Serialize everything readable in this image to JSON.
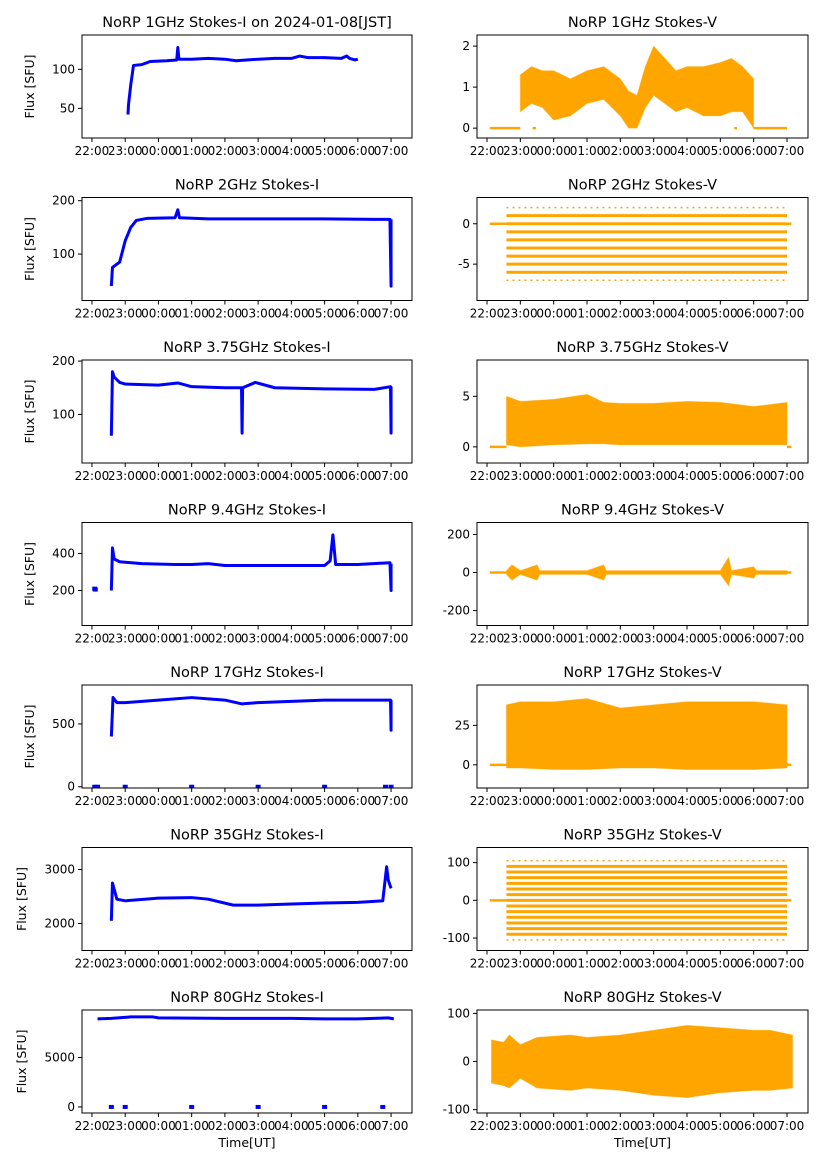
{
  "figure": {
    "xlabel": "Time[UT]"
  },
  "chart_data": [
    {
      "type": "line",
      "title": "NoRP 1GHz Stokes-I on 2024-01-08[JST]",
      "ylabel": "Flux [SFU]",
      "xlabel": "",
      "color": "#0000ff",
      "xticks": [
        "22:00",
        "23:00",
        "00:00",
        "01:00",
        "02:00",
        "03:00",
        "04:00",
        "05:00",
        "06:00",
        "07:00"
      ],
      "yticks": [
        50,
        100
      ],
      "ylim": [
        12,
        144
      ],
      "x": [
        "23:05",
        "23:06",
        "23:10",
        "23:15",
        "23:30",
        "23:45",
        "00:15",
        "00:33",
        "00:35",
        "00:37",
        "01:00",
        "01:30",
        "02:00",
        "02:20",
        "03:00",
        "03:30",
        "04:00",
        "04:15",
        "04:30",
        "05:00",
        "05:30",
        "05:40",
        "05:45",
        "05:55",
        "06:00"
      ],
      "y": [
        42,
        55,
        80,
        105,
        106,
        110,
        111,
        112,
        128,
        113,
        113,
        114,
        113,
        111,
        113,
        114,
        114,
        117,
        115,
        115,
        114,
        117,
        114,
        112,
        113
      ],
      "dots": []
    },
    {
      "type": "scatter",
      "title": "NoRP 1GHz Stokes-V",
      "ylabel": "",
      "xlabel": "",
      "color": "#ffa500",
      "xticks": [
        "22:00",
        "23:00",
        "00:00",
        "01:00",
        "02:00",
        "03:00",
        "04:00",
        "05:00",
        "06:00",
        "07:00"
      ],
      "yticks": [
        0,
        1,
        2
      ],
      "ylim": [
        -0.24,
        2.27
      ],
      "zero_segments": [
        [
          "22:05",
          "23:00"
        ],
        [
          "23:22",
          "23:28"
        ],
        [
          "05:25",
          "05:30"
        ],
        [
          "06:00",
          "07:00"
        ]
      ],
      "band": {
        "x": [
          "23:00",
          "23:20",
          "23:40",
          "00:00",
          "00:30",
          "01:00",
          "01:30",
          "02:00",
          "02:15",
          "02:30",
          "02:45",
          "03:00",
          "03:20",
          "03:40",
          "04:00",
          "04:30",
          "05:00",
          "05:20",
          "05:40",
          "06:00"
        ],
        "low": [
          0.4,
          0.6,
          0.5,
          0.2,
          0.3,
          0.6,
          0.7,
          0.3,
          0.0,
          0.0,
          0.5,
          0.8,
          0.6,
          0.4,
          0.5,
          0.3,
          0.3,
          0.4,
          0.4,
          0.0
        ],
        "high": [
          1.3,
          1.5,
          1.4,
          1.4,
          1.2,
          1.4,
          1.5,
          1.2,
          0.9,
          0.8,
          1.5,
          2.0,
          1.7,
          1.4,
          1.5,
          1.5,
          1.6,
          1.7,
          1.5,
          1.2
        ]
      },
      "levels": []
    },
    {
      "type": "line",
      "title": "NoRP 2GHz Stokes-I",
      "ylabel": "Flux [SFU]",
      "xlabel": "",
      "color": "#0000ff",
      "xticks": [
        "22:00",
        "23:00",
        "00:00",
        "01:00",
        "02:00",
        "03:00",
        "04:00",
        "05:00",
        "06:00",
        "07:00"
      ],
      "yticks": [
        100,
        200
      ],
      "ylim": [
        13,
        206
      ],
      "x": [
        "22:35",
        "22:37",
        "22:50",
        "23:00",
        "23:10",
        "23:20",
        "23:40",
        "00:30",
        "00:35",
        "00:38",
        "01:30",
        "03:00",
        "05:00",
        "06:30",
        "06:58",
        "07:00",
        "07:00"
      ],
      "y": [
        40,
        75,
        85,
        125,
        150,
        163,
        167,
        168,
        183,
        168,
        166,
        166,
        166,
        165,
        165,
        40,
        165
      ],
      "dots": []
    },
    {
      "type": "scatter",
      "title": "NoRP 2GHz Stokes-V",
      "ylabel": "",
      "xlabel": "",
      "color": "#ffa500",
      "xticks": [
        "22:00",
        "23:00",
        "00:00",
        "01:00",
        "02:00",
        "03:00",
        "04:00",
        "05:00",
        "06:00",
        "07:00"
      ],
      "yticks": [
        -5,
        0
      ],
      "ylim": [
        -9.5,
        3.25
      ],
      "zero_segments": [
        [
          "22:05",
          "22:35"
        ],
        [
          "07:00",
          "07:08"
        ]
      ],
      "band": null,
      "band_range": [
        "22:35",
        "07:00"
      ],
      "levels": [
        2,
        1,
        0,
        -1,
        -2,
        -3,
        -4,
        -5,
        -6,
        -7
      ]
    },
    {
      "type": "line",
      "title": "NoRP 3.75GHz Stokes-I",
      "ylabel": "Flux [SFU]",
      "xlabel": "",
      "color": "#0000ff",
      "xticks": [
        "22:00",
        "23:00",
        "00:00",
        "01:00",
        "02:00",
        "03:00",
        "04:00",
        "05:00",
        "06:00",
        "07:00"
      ],
      "yticks": [
        100,
        200
      ],
      "ylim": [
        9,
        202
      ],
      "x": [
        "22:35",
        "22:37",
        "22:40",
        "22:50",
        "23:00",
        "00:00",
        "00:35",
        "01:00",
        "02:00",
        "02:30",
        "02:31",
        "02:32",
        "02:55",
        "03:30",
        "05:00",
        "06:30",
        "06:59",
        "07:00",
        "07:00"
      ],
      "y": [
        60,
        180,
        170,
        160,
        157,
        155,
        159,
        152,
        150,
        150,
        65,
        150,
        160,
        150,
        148,
        147,
        152,
        65,
        152
      ],
      "dots": []
    },
    {
      "type": "scatter",
      "title": "NoRP 3.75GHz Stokes-V",
      "ylabel": "",
      "xlabel": "",
      "color": "#ffa500",
      "xticks": [
        "22:00",
        "23:00",
        "00:00",
        "01:00",
        "02:00",
        "03:00",
        "04:00",
        "05:00",
        "06:00",
        "07:00"
      ],
      "yticks": [
        0,
        5
      ],
      "ylim": [
        -1.6,
        8.6
      ],
      "zero_segments": [
        [
          "22:05",
          "22:35"
        ],
        [
          "07:00",
          "07:08"
        ]
      ],
      "band": {
        "x": [
          "22:35",
          "23:00",
          "00:00",
          "01:00",
          "01:30",
          "02:00",
          "03:00",
          "04:00",
          "05:00",
          "06:00",
          "07:00"
        ],
        "low": [
          0.2,
          0.0,
          0.2,
          0.3,
          0.3,
          0.2,
          0.2,
          0.2,
          0.2,
          0.2,
          0.2
        ],
        "high": [
          5.0,
          4.5,
          4.7,
          5.2,
          4.4,
          4.3,
          4.3,
          4.5,
          4.4,
          4.0,
          4.4
        ]
      },
      "levels": []
    },
    {
      "type": "line",
      "title": "NoRP 9.4GHz Stokes-I",
      "ylabel": "Flux [SFU]",
      "xlabel": "",
      "color": "#0000ff",
      "xticks": [
        "22:00",
        "23:00",
        "00:00",
        "01:00",
        "02:00",
        "03:00",
        "04:00",
        "05:00",
        "06:00",
        "07:00"
      ],
      "yticks": [
        200,
        400
      ],
      "ylim": [
        11,
        567
      ],
      "x": [
        "22:35",
        "22:37",
        "22:40",
        "22:50",
        "23:30",
        "00:30",
        "01:00",
        "01:30",
        "02:00",
        "03:00",
        "04:00",
        "05:00",
        "05:10",
        "05:15",
        "05:20",
        "06:00",
        "06:58",
        "07:00",
        "07:00"
      ],
      "y": [
        200,
        430,
        370,
        355,
        345,
        340,
        340,
        345,
        335,
        335,
        335,
        335,
        360,
        500,
        340,
        340,
        350,
        200,
        345
      ],
      "dots": [
        [
          "22:05",
          210
        ],
        [
          "22:06",
          205
        ]
      ]
    },
    {
      "type": "scatter",
      "title": "NoRP 9.4GHz Stokes-V",
      "ylabel": "",
      "xlabel": "",
      "color": "#ffa500",
      "xticks": [
        "22:00",
        "23:00",
        "00:00",
        "01:00",
        "02:00",
        "03:00",
        "04:00",
        "05:00",
        "06:00",
        "07:00"
      ],
      "yticks": [
        -200,
        0,
        200
      ],
      "ylim": [
        -279,
        263
      ],
      "zero_segments": [
        [
          "22:05",
          "22:35"
        ],
        [
          "07:00",
          "07:08"
        ]
      ],
      "band": {
        "x": [
          "22:35",
          "22:45",
          "23:00",
          "23:30",
          "23:35",
          "00:00",
          "01:00",
          "01:30",
          "01:35",
          "02:00",
          "03:00",
          "04:00",
          "05:00",
          "05:15",
          "05:20",
          "06:00",
          "06:05",
          "07:00"
        ],
        "low": [
          -10,
          -40,
          -10,
          -40,
          -10,
          -10,
          -10,
          -40,
          -10,
          -10,
          -10,
          -10,
          -10,
          -70,
          -10,
          -30,
          -10,
          -10
        ],
        "high": [
          10,
          40,
          10,
          40,
          10,
          10,
          10,
          40,
          10,
          10,
          10,
          10,
          10,
          80,
          10,
          30,
          10,
          10
        ]
      },
      "levels": []
    },
    {
      "type": "line",
      "title": "NoRP 17GHz Stokes-I",
      "ylabel": "Flux [SFU]",
      "xlabel": "",
      "color": "#0000ff",
      "xticks": [
        "22:00",
        "23:00",
        "00:00",
        "01:00",
        "02:00",
        "03:00",
        "04:00",
        "05:00",
        "06:00",
        "07:00"
      ],
      "yticks": [
        0,
        500
      ],
      "ylim": [
        -10,
        810
      ],
      "x": [
        "22:35",
        "22:38",
        "22:45",
        "23:00",
        "00:00",
        "01:00",
        "01:30",
        "02:00",
        "02:30",
        "03:00",
        "04:00",
        "05:00",
        "06:00",
        "06:59",
        "07:00",
        "07:00"
      ],
      "y": [
        400,
        710,
        670,
        670,
        690,
        710,
        700,
        690,
        660,
        670,
        680,
        690,
        690,
        690,
        450,
        690
      ],
      "dots": [
        [
          "22:05",
          0
        ],
        [
          "22:10",
          0
        ],
        [
          "23:00",
          0
        ],
        [
          "01:00",
          0
        ],
        [
          "03:00",
          0
        ],
        [
          "05:00",
          0
        ],
        [
          "06:50",
          0
        ],
        [
          "07:00",
          0
        ]
      ]
    },
    {
      "type": "scatter",
      "title": "NoRP 17GHz Stokes-V",
      "ylabel": "",
      "xlabel": "",
      "color": "#ffa500",
      "xticks": [
        "22:00",
        "23:00",
        "00:00",
        "01:00",
        "02:00",
        "03:00",
        "04:00",
        "05:00",
        "06:00",
        "07:00"
      ],
      "yticks": [
        0,
        25
      ],
      "ylim": [
        -14.7,
        50.6
      ],
      "zero_segments": [
        [
          "22:05",
          "22:35"
        ],
        [
          "07:00",
          "07:08"
        ]
      ],
      "band": {
        "x": [
          "22:35",
          "23:00",
          "00:00",
          "01:00",
          "02:00",
          "03:00",
          "04:00",
          "05:00",
          "06:00",
          "07:00"
        ],
        "low": [
          -2,
          -2,
          -3,
          -3,
          -2,
          -2,
          -3,
          -3,
          -3,
          -2
        ],
        "high": [
          38,
          40,
          40,
          42,
          36,
          38,
          40,
          40,
          40,
          38
        ]
      },
      "levels": []
    },
    {
      "type": "line",
      "title": "NoRP 35GHz Stokes-I",
      "ylabel": "Flux [SFU]",
      "xlabel": "",
      "color": "#0000ff",
      "xticks": [
        "22:00",
        "23:00",
        "00:00",
        "01:00",
        "02:00",
        "03:00",
        "04:00",
        "05:00",
        "06:00",
        "07:00"
      ],
      "yticks": [
        2000,
        3000
      ],
      "ylim": [
        1500,
        3407
      ],
      "x": [
        "22:35",
        "22:37",
        "22:45",
        "23:00",
        "00:00",
        "01:00",
        "01:30",
        "02:15",
        "03:00",
        "04:00",
        "05:00",
        "06:00",
        "06:45",
        "06:52",
        "06:55",
        "07:00"
      ],
      "y": [
        2050,
        2750,
        2450,
        2420,
        2470,
        2480,
        2450,
        2340,
        2340,
        2360,
        2380,
        2390,
        2420,
        3050,
        2800,
        2650
      ],
      "dots": []
    },
    {
      "type": "scatter",
      "title": "NoRP 35GHz Stokes-V",
      "ylabel": "",
      "xlabel": "",
      "color": "#ffa500",
      "xticks": [
        "22:00",
        "23:00",
        "00:00",
        "01:00",
        "02:00",
        "03:00",
        "04:00",
        "05:00",
        "06:00",
        "07:00"
      ],
      "yticks": [
        -100,
        0,
        100
      ],
      "ylim": [
        -133,
        140
      ],
      "zero_segments": [
        [
          "22:05",
          "22:35"
        ],
        [
          "07:00",
          "07:08"
        ]
      ],
      "band": null,
      "band_range": [
        "22:35",
        "07:00"
      ],
      "levels": [
        105,
        90,
        75,
        60,
        45,
        30,
        15,
        0,
        -15,
        -30,
        -45,
        -60,
        -75,
        -90,
        -105
      ]
    },
    {
      "type": "line",
      "title": "NoRP 80GHz Stokes-I",
      "ylabel": "Flux [SFU]",
      "xlabel": "Time[UT]",
      "color": "#0000ff",
      "xticks": [
        "22:00",
        "23:00",
        "00:00",
        "01:00",
        "02:00",
        "03:00",
        "04:00",
        "05:00",
        "06:00",
        "07:00"
      ],
      "yticks": [
        0,
        5000
      ],
      "ylim": [
        -612,
        9800
      ],
      "x": [
        "22:10",
        "22:35",
        "23:10",
        "23:50",
        "00:00",
        "02:00",
        "04:00",
        "05:00",
        "06:00",
        "06:55",
        "07:05"
      ],
      "y": [
        8900,
        8950,
        9100,
        9100,
        9000,
        8950,
        8950,
        8900,
        8900,
        9000,
        8900
      ],
      "dots": [
        [
          "22:35",
          0
        ],
        [
          "23:00",
          0
        ],
        [
          "01:00",
          0
        ],
        [
          "03:00",
          0
        ],
        [
          "05:00",
          0
        ],
        [
          "06:45",
          0
        ]
      ]
    },
    {
      "type": "scatter",
      "title": "NoRP 80GHz Stokes-V",
      "ylabel": "",
      "xlabel": "Time[UT]",
      "color": "#ffa500",
      "xticks": [
        "22:00",
        "23:00",
        "00:00",
        "01:00",
        "02:00",
        "03:00",
        "04:00",
        "05:00",
        "06:00",
        "07:00"
      ],
      "yticks": [
        -100,
        0,
        100
      ],
      "ylim": [
        -107,
        107
      ],
      "zero_segments": [],
      "band": {
        "x": [
          "22:08",
          "22:30",
          "22:40",
          "23:00",
          "23:30",
          "00:30",
          "01:00",
          "02:00",
          "03:00",
          "04:00",
          "05:00",
          "06:00",
          "06:30",
          "07:10"
        ],
        "low": [
          -45,
          -50,
          -55,
          -35,
          -55,
          -60,
          -55,
          -60,
          -70,
          -75,
          -65,
          -60,
          -60,
          -55
        ],
        "high": [
          45,
          40,
          55,
          35,
          50,
          55,
          50,
          55,
          65,
          75,
          70,
          65,
          65,
          55
        ]
      },
      "levels": []
    }
  ]
}
